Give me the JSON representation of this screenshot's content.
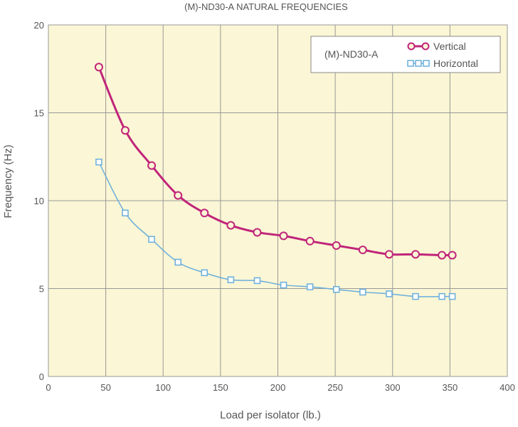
{
  "chart_data": {
    "type": "line",
    "title": "(M)-ND30-A NATURAL FREQUENCIES",
    "xlabel": "Load per isolator (lb.)",
    "ylabel": "Frequency (Hz)",
    "xlim": [
      0,
      400
    ],
    "ylim": [
      0,
      20
    ],
    "x_ticks": [
      0,
      50,
      100,
      150,
      200,
      250,
      300,
      350,
      400
    ],
    "y_ticks": [
      0,
      5,
      10,
      15,
      20
    ],
    "grid": true,
    "legend": {
      "title": "(M)-ND30-A",
      "placement": "top-right"
    },
    "colors": {
      "plot_background": "#fbf6d5",
      "grid": "#999999",
      "vertical": "#c0247a",
      "horizontal": "#6aaedc"
    },
    "series": [
      {
        "name": "Vertical",
        "marker": "circle",
        "x": [
          44,
          67,
          90,
          113,
          136,
          159,
          182,
          205,
          228,
          251,
          274,
          297,
          320,
          343,
          352
        ],
        "y": [
          17.6,
          14.0,
          12.0,
          10.3,
          9.3,
          8.6,
          8.2,
          8.0,
          7.7,
          7.45,
          7.2,
          6.95,
          6.95,
          6.9,
          6.9
        ]
      },
      {
        "name": "Horizontal",
        "marker": "square",
        "x": [
          44,
          67,
          90,
          113,
          136,
          159,
          182,
          205,
          228,
          251,
          274,
          297,
          320,
          343,
          352
        ],
        "y": [
          12.2,
          9.3,
          7.8,
          6.5,
          5.9,
          5.5,
          5.45,
          5.2,
          5.1,
          4.95,
          4.8,
          4.7,
          4.55,
          4.55,
          4.55
        ]
      }
    ]
  }
}
